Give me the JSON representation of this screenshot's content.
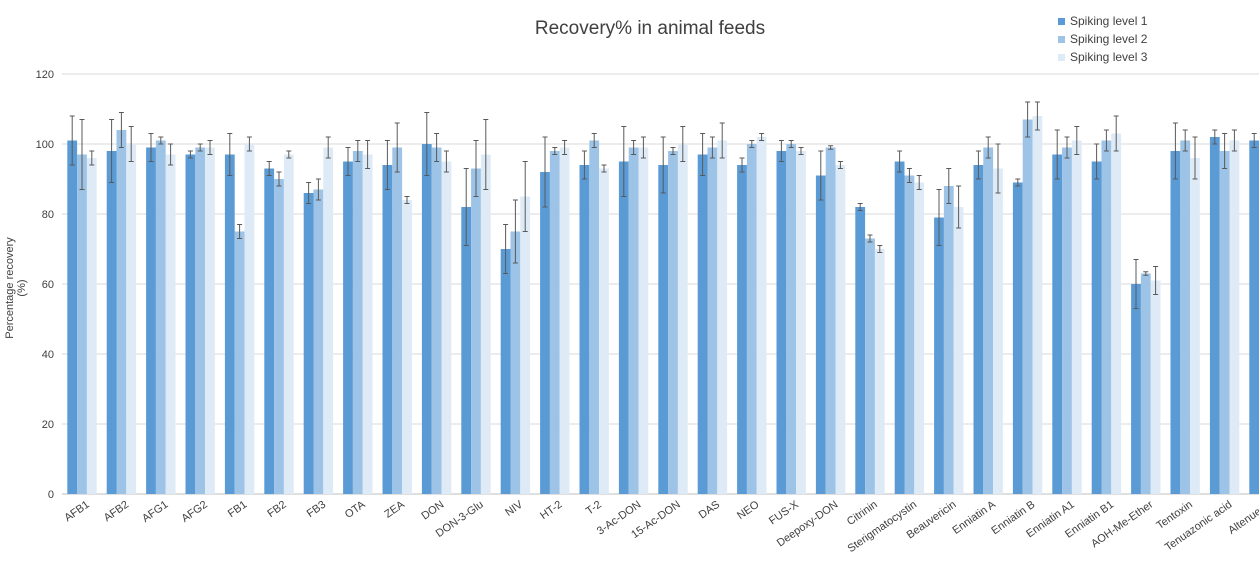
{
  "chart_data": {
    "type": "bar",
    "title": "Recovery% in animal feeds",
    "xlabel": "",
    "ylabel": "Percentage recovery (%)",
    "ylim": [
      0,
      120
    ],
    "yticks": [
      0,
      20,
      40,
      60,
      80,
      100,
      120
    ],
    "grid": true,
    "legend_position": "top-right",
    "categories": [
      "AFB1",
      "AFB2",
      "AFG1",
      "AFG2",
      "FB1",
      "FB2",
      "FB3",
      "OTA",
      "ZEA",
      "DON",
      "DON-3-Glu",
      "NIV",
      "HT-2",
      "T-2",
      "3-Ac-DON",
      "15-Ac-DON",
      "DAS",
      "NEO",
      "FUS-X",
      "Deepoxy-DON",
      "Citrinin",
      "Sterigmatocystin",
      "Beauvericin",
      "Enniatin A",
      "Enniatin B",
      "Enniatin A1",
      "Enniatin B1",
      "AOH-Me-Ether",
      "Tentoxin",
      "Tenuazonic acid",
      "Altenuene"
    ],
    "series": [
      {
        "name": "Spiking level 1",
        "color": "#5b9bd5",
        "values": [
          101,
          98,
          99,
          97,
          97,
          93,
          86,
          95,
          94,
          100,
          82,
          70,
          92,
          94,
          95,
          94,
          97,
          94,
          98,
          91,
          82,
          95,
          79,
          94,
          89,
          97,
          95,
          60,
          98,
          102,
          101
        ],
        "errors": [
          7,
          9,
          4,
          1,
          6,
          2,
          3,
          4,
          7,
          9,
          11,
          7,
          10,
          4,
          10,
          8,
          6,
          2,
          3,
          7,
          1,
          3,
          8,
          4,
          1,
          7,
          5,
          7,
          8,
          2,
          2
        ]
      },
      {
        "name": "Spiking level 2",
        "color": "#9dc3e6",
        "values": [
          97,
          104,
          101,
          99,
          75,
          90,
          87,
          98,
          99,
          99,
          93,
          75,
          98,
          101,
          99,
          98,
          99,
          100,
          100,
          99,
          73,
          91,
          88,
          99,
          107,
          99,
          101,
          63,
          101,
          98,
          102
        ],
        "errors": [
          10,
          5,
          1,
          1,
          2,
          2,
          3,
          3,
          7,
          4,
          8,
          9,
          1,
          2,
          2,
          1,
          3,
          1,
          1,
          0.5,
          1,
          2,
          5,
          3,
          5,
          3,
          3,
          0.5,
          3,
          5,
          1
        ]
      },
      {
        "name": "Spiking level 3",
        "color": "#deebf7",
        "values": [
          96,
          100,
          97,
          99,
          100,
          97,
          99,
          97,
          84,
          95,
          97,
          85,
          99,
          93,
          99,
          100,
          101,
          102,
          98,
          94,
          70,
          89,
          82,
          93,
          108,
          101,
          103,
          61,
          96,
          101,
          0
        ],
        "errors": [
          2,
          5,
          3,
          2,
          2,
          1,
          3,
          4,
          1,
          3,
          10,
          10,
          2,
          1,
          3,
          5,
          5,
          1,
          1,
          1,
          1,
          2,
          6,
          7,
          4,
          4,
          5,
          4,
          6,
          3,
          0
        ]
      }
    ]
  }
}
